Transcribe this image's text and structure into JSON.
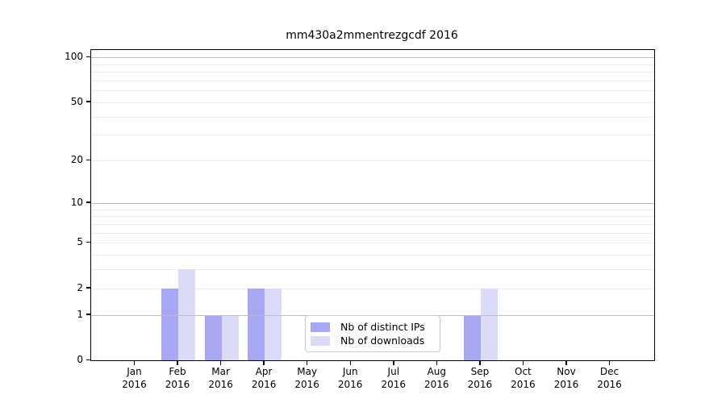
{
  "title": "mm430a2mmentrezgcdf 2016",
  "colors": {
    "distinct_ips": "#a7a7f2",
    "downloads": "#dbdbf8",
    "grid_major": "#bdbdbd",
    "grid_minor": "#ebebeb",
    "axis": "#000000",
    "legend_border": "#cccccc"
  },
  "legend": {
    "items": [
      {
        "label": "Nb of distinct IPs",
        "color": "#a7a7f2"
      },
      {
        "label": "Nb of downloads",
        "color": "#dbdbf8"
      }
    ]
  },
  "chart_data": {
    "type": "bar",
    "title": "mm430a2mmentrezgcdf 2016",
    "categories": [
      "Jan 2016",
      "Feb 2016",
      "Mar 2016",
      "Apr 2016",
      "May 2016",
      "Jun 2016",
      "Jul 2016",
      "Aug 2016",
      "Sep 2016",
      "Oct 2016",
      "Nov 2016",
      "Dec 2016"
    ],
    "series": [
      {
        "name": "Nb of distinct IPs",
        "color": "#a7a7f2",
        "values": [
          0,
          2,
          1,
          2,
          0,
          0,
          0,
          0,
          1,
          0,
          0,
          0
        ]
      },
      {
        "name": "Nb of downloads",
        "color": "#dbdbf8",
        "values": [
          0,
          3,
          1,
          2,
          0,
          0,
          0,
          0,
          2,
          0,
          0,
          0
        ]
      }
    ],
    "xlabel": "",
    "ylabel": "",
    "yscale": "log1p",
    "yticks": [
      0,
      1,
      2,
      5,
      10,
      20,
      50,
      100
    ],
    "grid_major_values": [
      1,
      10,
      100
    ],
    "grid_minor_values": [
      2,
      3,
      4,
      5,
      6,
      7,
      8,
      9,
      20,
      30,
      40,
      50,
      60,
      70,
      80,
      90
    ],
    "ylim": [
      0,
      112
    ],
    "grid": "both",
    "legend_position": "lower center"
  }
}
